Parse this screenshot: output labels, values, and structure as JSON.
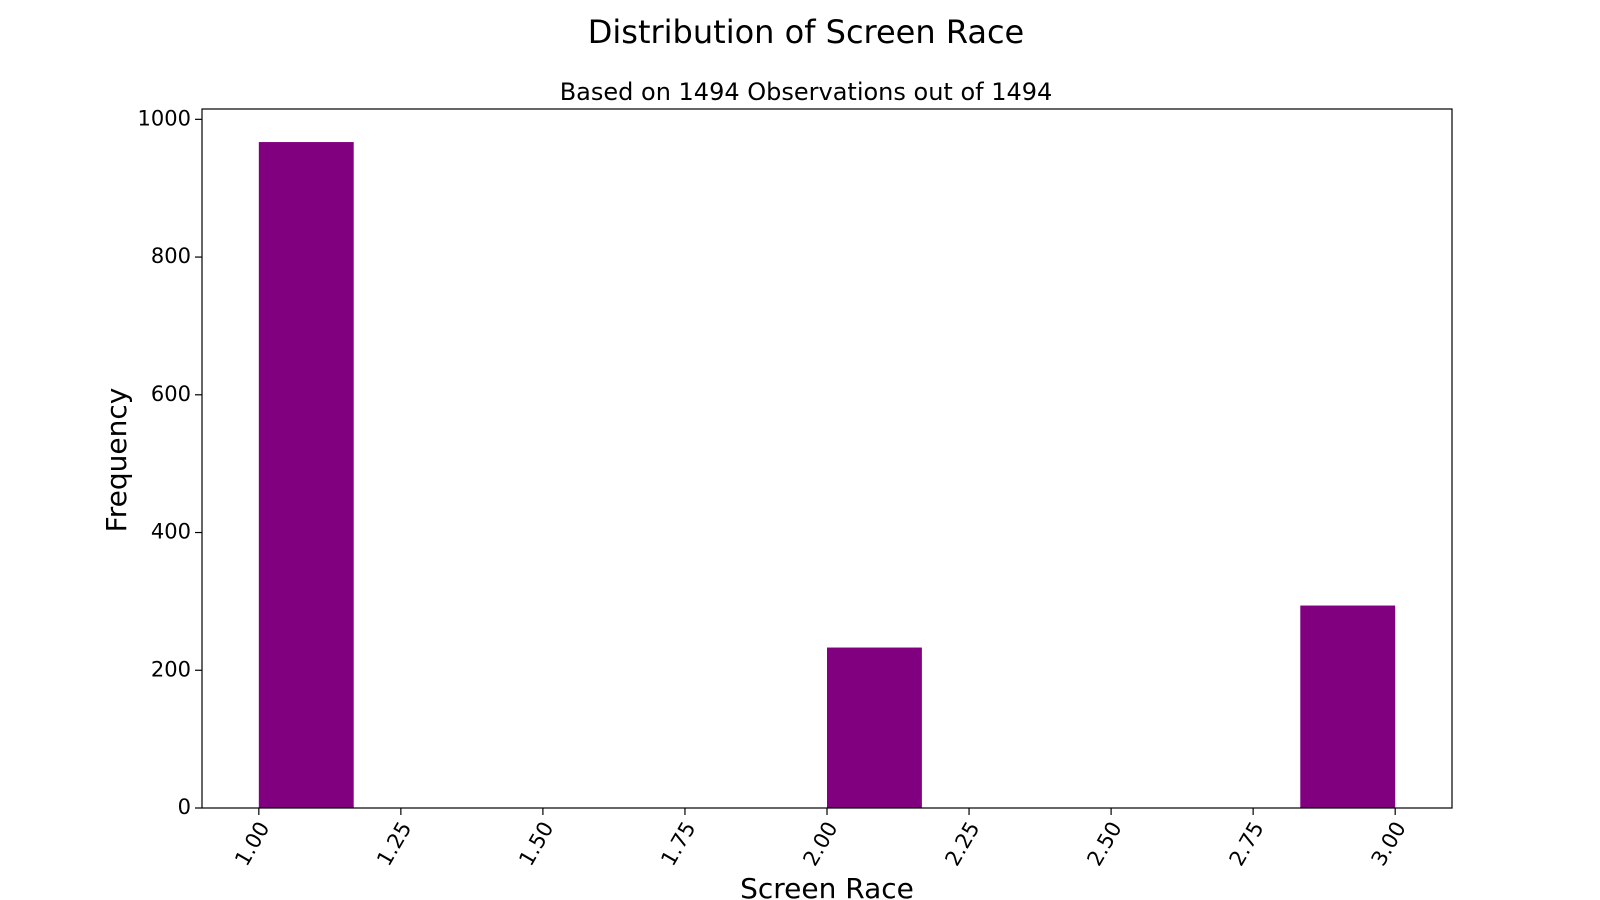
{
  "chart_data": {
    "type": "bar",
    "title": "Distribution of Screen Race",
    "subtitle": "Based on 1494 Observations out of 1494",
    "xlabel": "Screen Race",
    "ylabel": "Frequency",
    "xlim": [
      0.9,
      3.1
    ],
    "ylim": [
      0,
      1015
    ],
    "x_ticks": [
      1.0,
      1.25,
      1.5,
      1.75,
      2.0,
      2.25,
      2.5,
      2.75,
      3.0
    ],
    "x_tick_labels": [
      "1.00",
      "1.25",
      "1.50",
      "1.75",
      "2.00",
      "2.25",
      "2.50",
      "2.75",
      "3.00"
    ],
    "y_ticks": [
      0,
      200,
      400,
      600,
      800,
      1000
    ],
    "y_tick_labels": [
      "0",
      "200",
      "400",
      "600",
      "800",
      "1000"
    ],
    "bars": [
      {
        "x0": 1.0,
        "x1": 1.167,
        "value": 967
      },
      {
        "x0": 2.0,
        "x1": 2.167,
        "value": 233
      },
      {
        "x0": 2.833,
        "x1": 3.0,
        "value": 294
      }
    ],
    "bar_color": "#800080",
    "grid": false,
    "legend": "none"
  }
}
